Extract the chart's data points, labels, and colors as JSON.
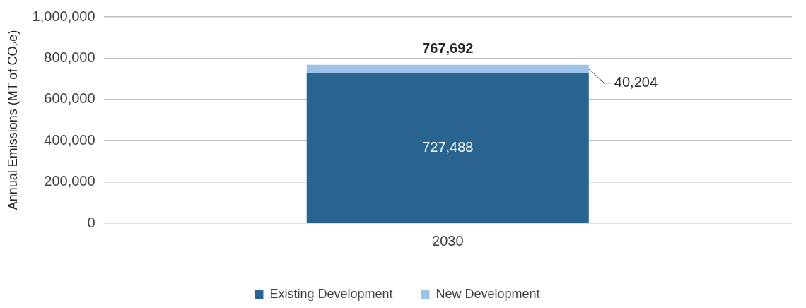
{
  "chart_data": {
    "type": "bar",
    "stacked": true,
    "ylabel": "Annual Emissions (MT of CO₂e)",
    "categories": [
      "2030"
    ],
    "series": [
      {
        "name": "Existing Development",
        "color": "#2a6591",
        "values": [
          727488
        ],
        "value_labels": [
          "727,488"
        ]
      },
      {
        "name": "New Development",
        "color": "#9dc3e6",
        "values": [
          40204
        ],
        "value_labels": [
          "40,204"
        ]
      }
    ],
    "totals": [
      "767,692"
    ],
    "ylim": [
      0,
      1000000
    ],
    "yticks": [
      {
        "value": 0,
        "label": "0"
      },
      {
        "value": 200000,
        "label": "200,000"
      },
      {
        "value": 400000,
        "label": "400,000"
      },
      {
        "value": 600000,
        "label": "600,000"
      },
      {
        "value": 800000,
        "label": "800,000"
      },
      {
        "value": 1000000,
        "label": "1,000,000"
      }
    ],
    "grid": "y",
    "legend": "bottom"
  }
}
